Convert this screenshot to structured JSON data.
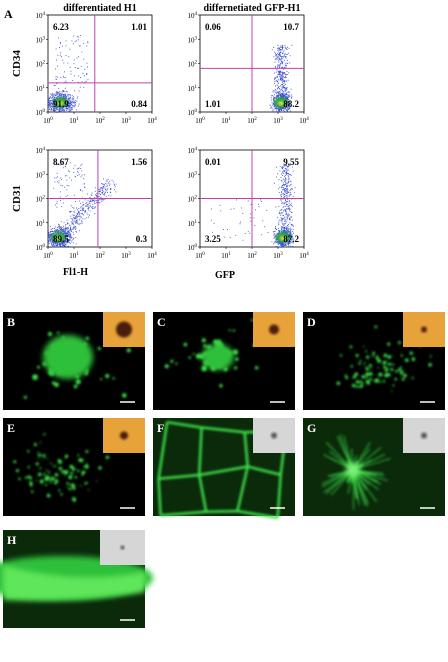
{
  "panel_a": {
    "label": "A",
    "columns": [
      "differentiated H1",
      "differnetiated GFP-H1"
    ],
    "rows": [
      "CD34",
      "CD31"
    ],
    "x_labels": [
      "Fl1-H",
      "GFP"
    ],
    "tick_base": "10",
    "tick_exponents": [
      "0",
      "1",
      "2",
      "3",
      "4"
    ],
    "plots": [
      {
        "upper_left": 6.23,
        "upper_right": 1.01,
        "lower_left": 91.9,
        "lower_right": 0.84
      },
      {
        "upper_left": 0.06,
        "upper_right": 10.7,
        "lower_left": 1.01,
        "lower_right": 88.2
      },
      {
        "upper_left": 8.67,
        "upper_right": 1.56,
        "lower_left": 89.5,
        "lower_right": 0.3
      },
      {
        "upper_left": 0.01,
        "upper_right": 9.55,
        "lower_left": 3.25,
        "lower_right": 87.2
      }
    ]
  },
  "micrographs": [
    {
      "label": "B"
    },
    {
      "label": "C"
    },
    {
      "label": "D"
    },
    {
      "label": "E"
    },
    {
      "label": "F"
    },
    {
      "label": "G"
    },
    {
      "label": "H"
    }
  ]
}
